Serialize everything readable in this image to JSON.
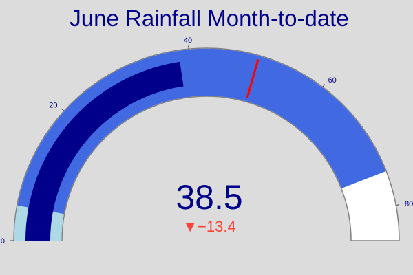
{
  "chart_data": {
    "type": "gauge",
    "title": "June Rainfall Month-to-date",
    "value": 38.5,
    "value_display": "38.5",
    "reference": 51.9,
    "delta": -13.4,
    "delta_display": "▼−13.4",
    "range": [
      0,
      85
    ],
    "ticks": [
      0,
      20,
      40,
      60,
      80
    ],
    "tick_labels": [
      "0",
      "20",
      "40",
      "60",
      "80"
    ],
    "steps": [
      {
        "range": [
          0,
          5
        ],
        "color": "#add8e6"
      },
      {
        "range": [
          5,
          75
        ],
        "color": "#4169e1"
      }
    ],
    "threshold": {
      "value": 50,
      "color": "#ff0000"
    },
    "bar_color": "#00008b",
    "gauge_background": "#ffffff",
    "border_color": "#808080",
    "text_color": "#00008b",
    "decreasing_color": "#ff4136",
    "page_background": "#dcdcdc"
  }
}
